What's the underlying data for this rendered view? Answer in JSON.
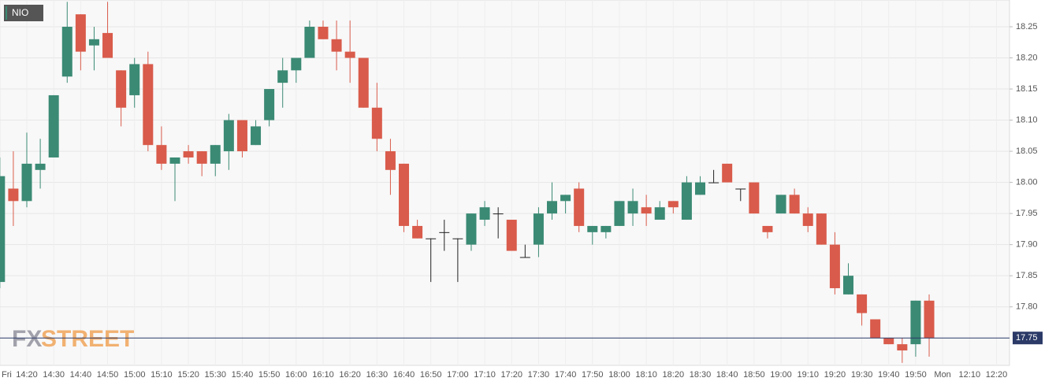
{
  "chart_data": {
    "type": "candlestick",
    "categories": [
      "Fri",
      null,
      "14:20",
      null,
      "14:30",
      null,
      "14:40",
      null,
      "14:50",
      null,
      "15:00",
      null,
      "15:10",
      null,
      "15:20",
      null,
      "15:30",
      null,
      "15:40",
      null,
      "15:50",
      null,
      "16:00",
      null,
      "16:10",
      null,
      "16:20",
      null,
      "16:30",
      null,
      "16:40",
      null,
      "16:50",
      null,
      "17:00",
      null,
      "17:10",
      null,
      "17:20",
      null,
      "17:30",
      null,
      "17:40",
      null,
      "17:50",
      null,
      "18:00",
      null,
      "18:10",
      null,
      "18:20",
      null,
      "18:30",
      null,
      "18:40",
      null,
      "18:50",
      null,
      "19:00",
      null,
      "19:10",
      null,
      "19:20",
      null,
      "19:30",
      null,
      "19:40",
      null,
      "19:50",
      null,
      "Mon",
      null,
      "12:10",
      null,
      "12:20"
    ],
    "series": [
      {
        "name": "NIO",
        "up_color": "#3b8a74",
        "down_color": "#d95b4b",
        "flat_color": "#222222",
        "open": [
          17.84,
          17.99,
          17.97,
          18.02,
          18.04,
          18.17,
          18.27,
          18.22,
          18.24,
          18.18,
          18.14,
          18.19,
          18.06,
          18.03,
          18.05,
          18.05,
          18.03,
          18.05,
          18.1,
          18.06,
          18.1,
          18.16,
          18.18,
          18.2,
          18.25,
          18.23,
          18.21,
          18.2,
          18.12,
          18.05,
          18.03,
          17.93,
          17.91,
          17.92,
          17.91,
          17.9,
          17.94,
          17.95,
          17.94,
          17.88,
          17.9,
          17.95,
          17.97,
          17.99,
          17.92,
          17.92,
          17.93,
          17.95,
          17.96,
          17.94,
          17.97,
          17.94,
          17.98,
          18.0,
          18.03,
          17.99,
          18.0,
          17.93,
          17.95,
          17.98,
          17.95,
          17.95,
          17.9,
          17.82,
          17.82,
          17.78,
          17.75,
          17.74,
          17.74,
          17.81,
          null,
          null,
          null,
          null,
          null
        ],
        "high": [
          18.04,
          18.05,
          18.08,
          18.07,
          18.14,
          18.29,
          18.27,
          18.25,
          18.29,
          18.18,
          18.2,
          18.21,
          18.09,
          18.04,
          18.06,
          18.05,
          18.06,
          18.11,
          18.1,
          18.1,
          18.15,
          18.2,
          18.2,
          18.26,
          18.26,
          18.26,
          18.26,
          18.2,
          18.16,
          18.07,
          18.03,
          17.94,
          17.91,
          17.94,
          17.91,
          17.95,
          17.97,
          17.96,
          17.94,
          17.9,
          17.96,
          18.0,
          17.98,
          18.0,
          17.93,
          17.93,
          17.97,
          17.99,
          17.98,
          17.97,
          17.97,
          18.01,
          18.01,
          18.02,
          18.03,
          17.99,
          18.0,
          17.93,
          17.98,
          17.99,
          17.96,
          17.95,
          17.92,
          17.87,
          17.82,
          17.78,
          17.75,
          17.75,
          17.81,
          17.82,
          null,
          null,
          null,
          null,
          null
        ],
        "low": [
          17.83,
          17.93,
          17.96,
          17.99,
          18.04,
          18.16,
          18.18,
          18.18,
          18.2,
          18.09,
          18.12,
          18.05,
          18.02,
          17.97,
          18.03,
          18.01,
          18.01,
          18.02,
          18.04,
          18.06,
          18.09,
          18.12,
          18.16,
          18.2,
          18.23,
          18.18,
          18.16,
          18.12,
          18.05,
          17.98,
          17.92,
          17.91,
          17.84,
          17.89,
          17.84,
          17.89,
          17.93,
          17.91,
          17.89,
          17.88,
          17.88,
          17.94,
          17.95,
          17.92,
          17.9,
          17.91,
          17.93,
          17.93,
          17.93,
          17.94,
          17.95,
          17.94,
          17.98,
          18.0,
          18.0,
          17.97,
          17.95,
          17.91,
          17.95,
          17.95,
          17.92,
          17.9,
          17.82,
          17.82,
          17.77,
          17.75,
          17.74,
          17.71,
          17.72,
          17.72,
          null,
          null,
          null,
          null,
          null
        ],
        "close": [
          18.01,
          17.97,
          18.03,
          18.03,
          18.14,
          18.25,
          18.21,
          18.23,
          18.2,
          18.12,
          18.19,
          18.06,
          18.03,
          18.04,
          18.04,
          18.03,
          18.06,
          18.1,
          18.05,
          18.09,
          18.15,
          18.18,
          18.2,
          18.25,
          18.23,
          18.21,
          18.2,
          18.12,
          18.07,
          18.02,
          17.93,
          17.91,
          17.91,
          17.92,
          17.91,
          17.95,
          17.96,
          17.95,
          17.89,
          17.88,
          17.95,
          17.97,
          17.98,
          17.93,
          17.93,
          17.93,
          17.97,
          17.97,
          17.95,
          17.96,
          17.96,
          18.0,
          18.0,
          18.0,
          18.0,
          17.99,
          17.95,
          17.92,
          17.98,
          17.95,
          17.93,
          17.9,
          17.83,
          17.85,
          17.79,
          17.75,
          17.74,
          17.73,
          17.81,
          17.75,
          null,
          null,
          null,
          null,
          null
        ]
      }
    ],
    "ylim": [
      17.706,
      18.293
    ],
    "yticks": [
      {
        "value": 17.8,
        "label": "17.80"
      },
      {
        "value": 17.85,
        "label": "17.85"
      },
      {
        "value": 17.9,
        "label": "17.90"
      },
      {
        "value": 17.95,
        "label": "17.95"
      },
      {
        "value": 18.0,
        "label": "18.00"
      },
      {
        "value": 18.05,
        "label": "18.05"
      },
      {
        "value": 18.1,
        "label": "18.10"
      },
      {
        "value": 18.15,
        "label": "18.15"
      },
      {
        "value": 18.2,
        "label": "18.20"
      },
      {
        "value": 18.25,
        "label": "18.25"
      }
    ],
    "current_price": {
      "value": 17.75,
      "label": "17.75",
      "color": "#2b3a67"
    },
    "grid": true,
    "watermark": [
      "FX",
      "STREET"
    ]
  }
}
